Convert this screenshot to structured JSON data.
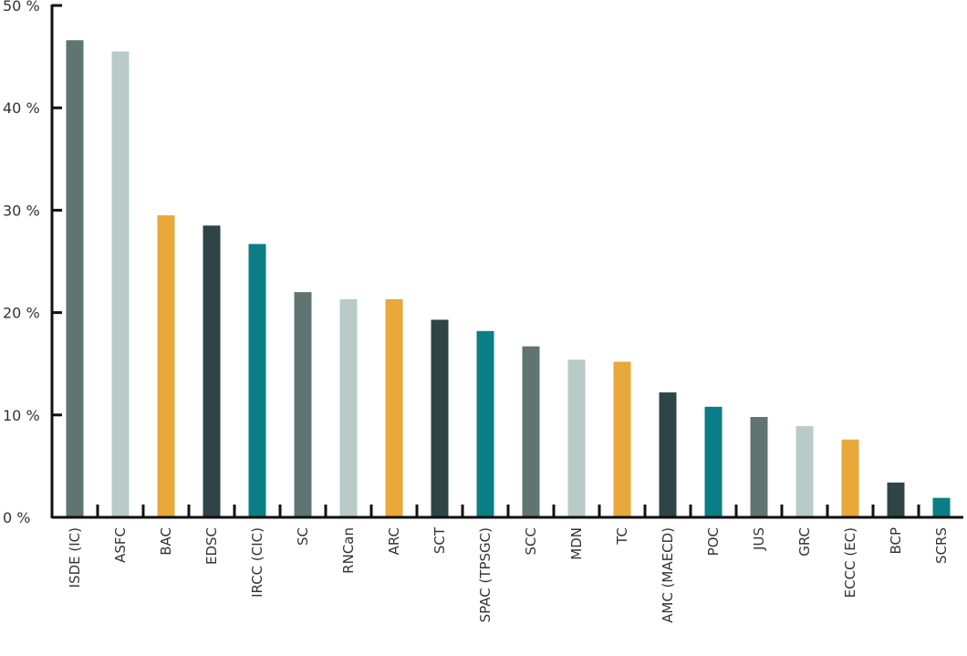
{
  "chart_data": {
    "type": "bar",
    "title": "",
    "xlabel": "",
    "ylabel": "",
    "ylim": [
      0,
      50
    ],
    "grid": false,
    "legend": "none",
    "y_ticks": [
      0,
      10,
      20,
      30,
      40,
      50
    ],
    "y_tick_labels": [
      "0 %",
      "10 %",
      "20 %",
      "30 %",
      "40 %",
      "50 %"
    ],
    "categories": [
      "ISDE (IC)",
      "ASFC",
      "BAC",
      "EDSC",
      "IRCC (CIC)",
      "SC",
      "RNCan",
      "ARC",
      "SCT",
      "SPAC (TPSGC)",
      "SCC",
      "MDN",
      "TC",
      "AMC (MAECD)",
      "POC",
      "JUS",
      "GRC",
      "ECCC (EC)",
      "BCP",
      "SCRS"
    ],
    "values": [
      46.6,
      45.5,
      29.5,
      28.5,
      26.7,
      22.0,
      21.3,
      21.3,
      19.3,
      18.2,
      16.7,
      15.4,
      15.2,
      12.2,
      10.8,
      9.8,
      8.9,
      7.6,
      3.4,
      1.9
    ],
    "colors": [
      "#607472",
      "#b9cbc8",
      "#e8a83a",
      "#2e4447",
      "#0b7d86",
      "#607472",
      "#b9cbc8",
      "#e8a83a",
      "#2e4447",
      "#0b7d86",
      "#607472",
      "#b9cbc8",
      "#e8a83a",
      "#2e4447",
      "#0b7d86",
      "#607472",
      "#b9cbc8",
      "#e8a83a",
      "#2e4447",
      "#0b7d86"
    ],
    "axis_color": "#111111"
  }
}
